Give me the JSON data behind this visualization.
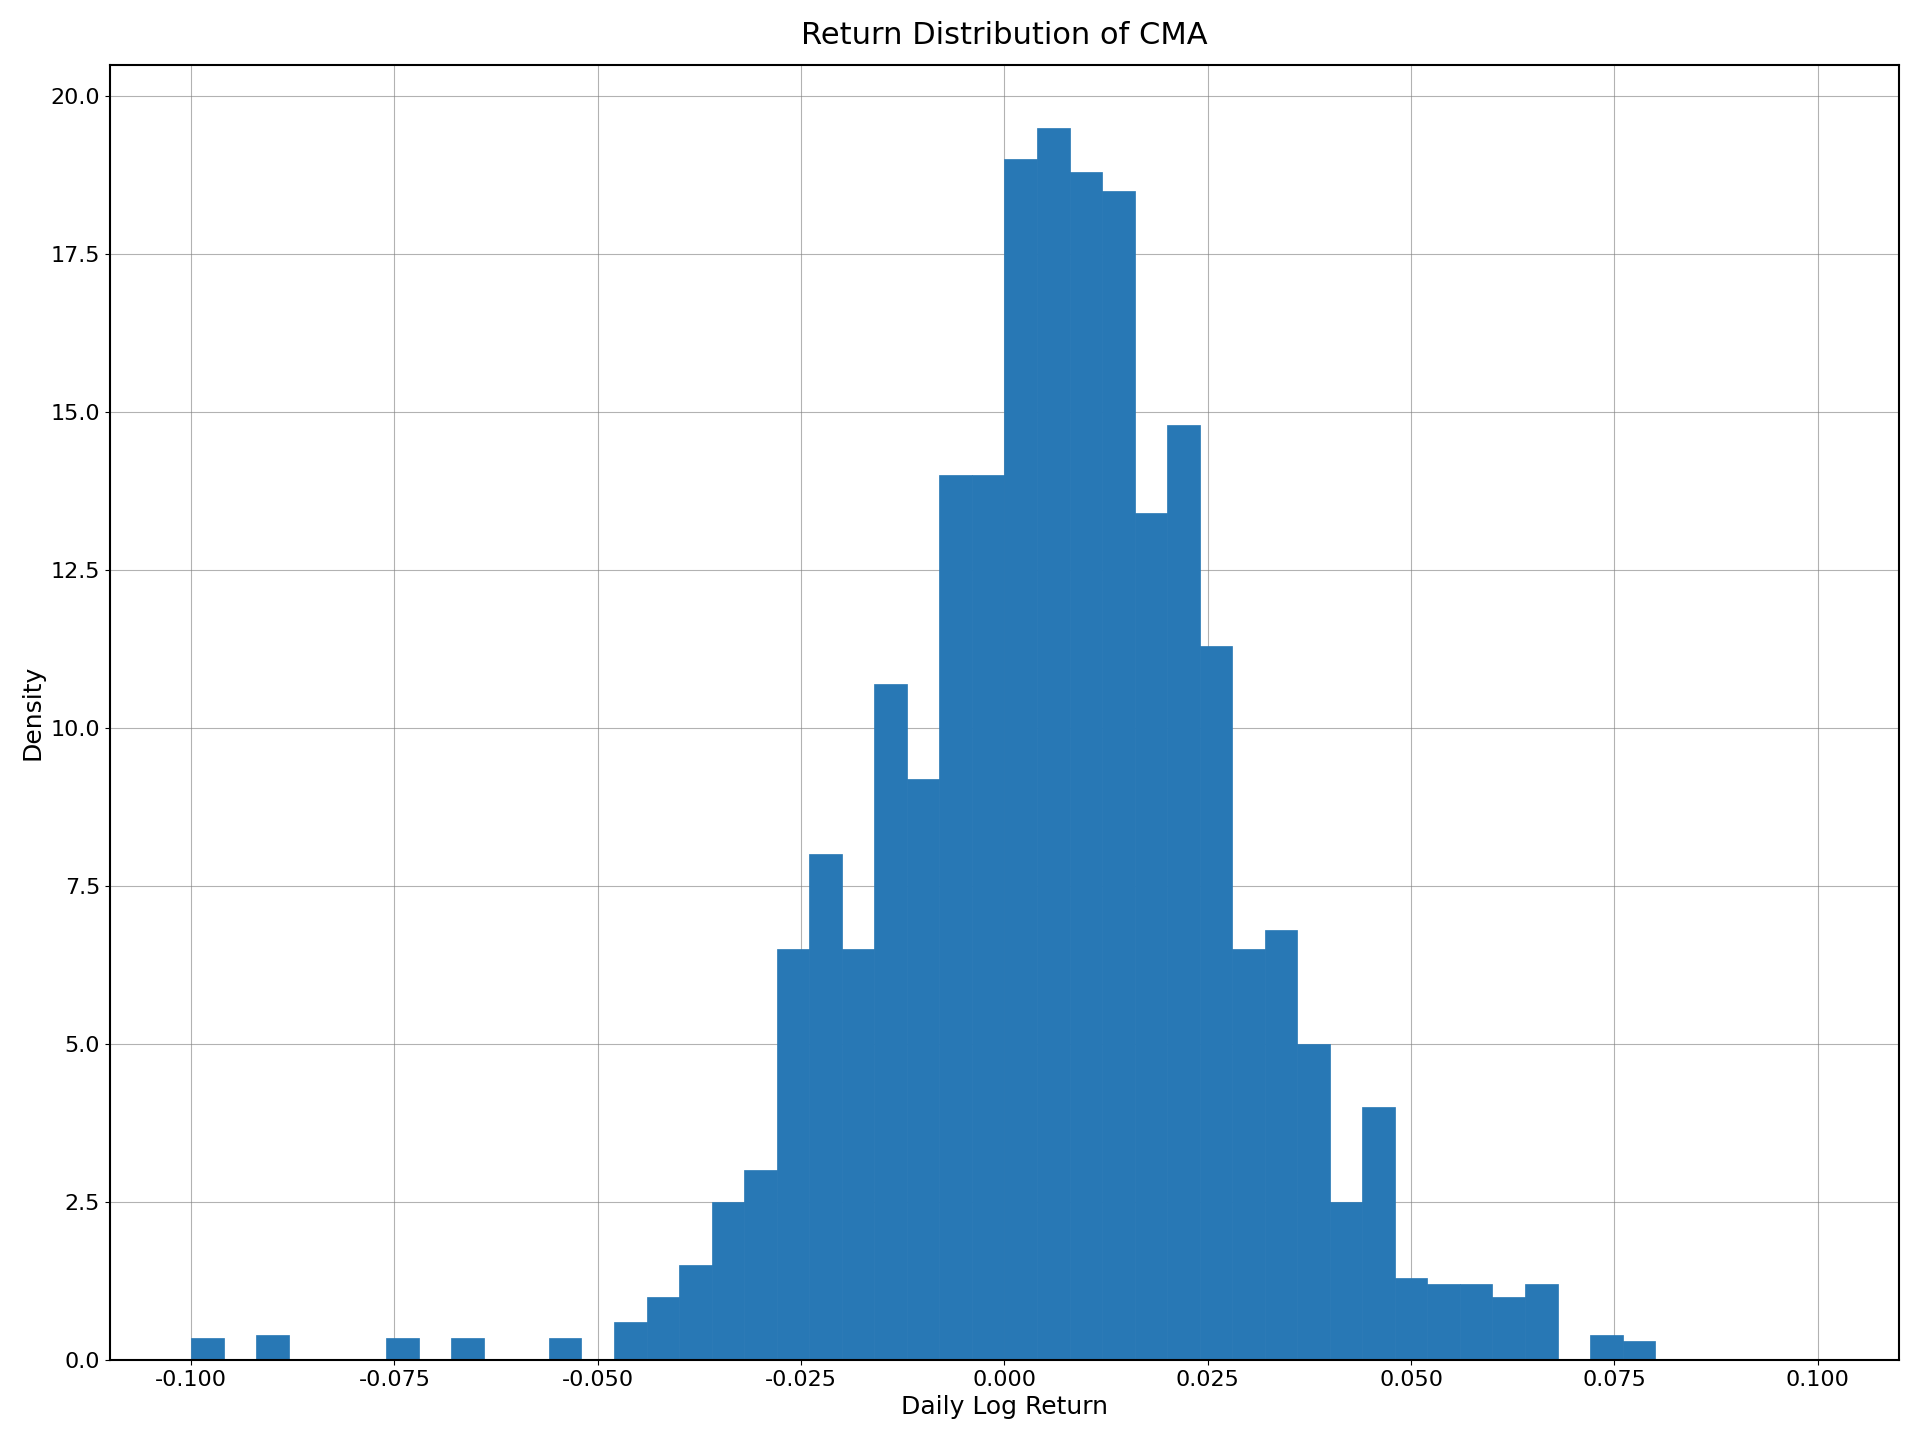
{
  "title": "Return Distribution of CMA",
  "xlabel": "Daily Log Return",
  "ylabel": "Density",
  "bar_color": "#2878b5",
  "xlim": [
    -0.11,
    0.11
  ],
  "ylim": [
    0,
    20.5
  ],
  "xticks": [
    -0.1,
    -0.075,
    -0.05,
    -0.025,
    0.0,
    0.025,
    0.05,
    0.075,
    0.1
  ],
  "yticks": [
    0.0,
    2.5,
    5.0,
    7.5,
    10.0,
    12.5,
    15.0,
    17.5,
    20.0
  ],
  "bin_left": [
    -0.1,
    -0.096,
    -0.092,
    -0.088,
    -0.084,
    -0.08,
    -0.076,
    -0.072,
    -0.068,
    -0.064,
    -0.06,
    -0.056,
    -0.052,
    -0.048,
    -0.044,
    -0.04,
    -0.036,
    -0.032,
    -0.028,
    -0.024,
    -0.02,
    -0.016,
    -0.012,
    -0.008,
    -0.004,
    0.0,
    0.004,
    0.008,
    0.012,
    0.016,
    0.02,
    0.024,
    0.028,
    0.032,
    0.036,
    0.04,
    0.044,
    0.048,
    0.052,
    0.056,
    0.06,
    0.064,
    0.068,
    0.072,
    0.076,
    0.08,
    0.084,
    0.088,
    0.092,
    0.096
  ],
  "densities": [
    0.35,
    0.0,
    0.4,
    0.0,
    0.0,
    0.0,
    0.35,
    0.0,
    0.35,
    0.0,
    0.0,
    0.35,
    0.0,
    0.6,
    1.0,
    1.5,
    2.5,
    3.0,
    6.5,
    8.0,
    6.5,
    10.7,
    9.2,
    14.0,
    14.0,
    19.0,
    19.5,
    18.8,
    18.5,
    13.4,
    14.8,
    11.3,
    6.5,
    6.8,
    5.0,
    2.5,
    4.0,
    1.3,
    1.2,
    1.2,
    1.0,
    1.2,
    0.0,
    0.4,
    0.3,
    0.0,
    0.0,
    0.0,
    0.0,
    0.0
  ],
  "bin_width": 0.004,
  "figsize": [
    19.2,
    14.4
  ],
  "dpi": 100,
  "title_fontsize": 22,
  "label_fontsize": 18,
  "tick_fontsize": 16
}
